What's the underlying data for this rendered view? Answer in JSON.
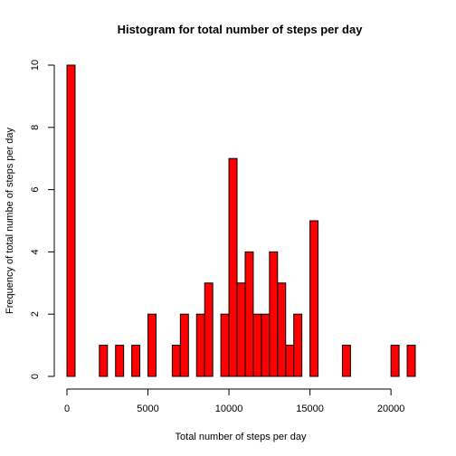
{
  "chart_data": {
    "type": "bar",
    "title": "Histogram for total number of steps per day",
    "xlabel": "Total number of steps per day",
    "ylabel": "Frequency of total numbe of steps per day",
    "xlim": [
      0,
      21500
    ],
    "ylim": [
      0,
      10
    ],
    "bin_width": 500,
    "x_ticks": [
      0,
      5000,
      10000,
      15000,
      20000
    ],
    "y_ticks": [
      0,
      2,
      4,
      6,
      8,
      10
    ],
    "bins": [
      {
        "start": 0,
        "end": 500,
        "count": 10
      },
      {
        "start": 500,
        "end": 1000,
        "count": 0
      },
      {
        "start": 1000,
        "end": 1500,
        "count": 0
      },
      {
        "start": 1500,
        "end": 2000,
        "count": 0
      },
      {
        "start": 2000,
        "end": 2500,
        "count": 1
      },
      {
        "start": 2500,
        "end": 3000,
        "count": 0
      },
      {
        "start": 3000,
        "end": 3500,
        "count": 1
      },
      {
        "start": 3500,
        "end": 4000,
        "count": 0
      },
      {
        "start": 4000,
        "end": 4500,
        "count": 1
      },
      {
        "start": 4500,
        "end": 5000,
        "count": 0
      },
      {
        "start": 5000,
        "end": 5500,
        "count": 2
      },
      {
        "start": 5500,
        "end": 6000,
        "count": 0
      },
      {
        "start": 6000,
        "end": 6500,
        "count": 0
      },
      {
        "start": 6500,
        "end": 7000,
        "count": 1
      },
      {
        "start": 7000,
        "end": 7500,
        "count": 2
      },
      {
        "start": 7500,
        "end": 8000,
        "count": 0
      },
      {
        "start": 8000,
        "end": 8500,
        "count": 2
      },
      {
        "start": 8500,
        "end": 9000,
        "count": 3
      },
      {
        "start": 9000,
        "end": 9500,
        "count": 0
      },
      {
        "start": 9500,
        "end": 10000,
        "count": 2
      },
      {
        "start": 10000,
        "end": 10500,
        "count": 7
      },
      {
        "start": 10500,
        "end": 11000,
        "count": 3
      },
      {
        "start": 11000,
        "end": 11500,
        "count": 4
      },
      {
        "start": 11500,
        "end": 12000,
        "count": 2
      },
      {
        "start": 12000,
        "end": 12500,
        "count": 2
      },
      {
        "start": 12500,
        "end": 13000,
        "count": 4
      },
      {
        "start": 13000,
        "end": 13500,
        "count": 3
      },
      {
        "start": 13500,
        "end": 14000,
        "count": 1
      },
      {
        "start": 14000,
        "end": 14500,
        "count": 2
      },
      {
        "start": 14500,
        "end": 15000,
        "count": 0
      },
      {
        "start": 15000,
        "end": 15500,
        "count": 5
      },
      {
        "start": 15500,
        "end": 16000,
        "count": 0
      },
      {
        "start": 16000,
        "end": 16500,
        "count": 0
      },
      {
        "start": 16500,
        "end": 17000,
        "count": 0
      },
      {
        "start": 17000,
        "end": 17500,
        "count": 1
      },
      {
        "start": 17500,
        "end": 18000,
        "count": 0
      },
      {
        "start": 18000,
        "end": 18500,
        "count": 0
      },
      {
        "start": 18500,
        "end": 19000,
        "count": 0
      },
      {
        "start": 19000,
        "end": 19500,
        "count": 0
      },
      {
        "start": 19500,
        "end": 20000,
        "count": 0
      },
      {
        "start": 20000,
        "end": 20500,
        "count": 1
      },
      {
        "start": 20500,
        "end": 21000,
        "count": 0
      },
      {
        "start": 21000,
        "end": 21500,
        "count": 1
      }
    ],
    "bar_fill": "#ff0000",
    "bar_stroke": "#000000",
    "grid": false,
    "legend": "none"
  }
}
